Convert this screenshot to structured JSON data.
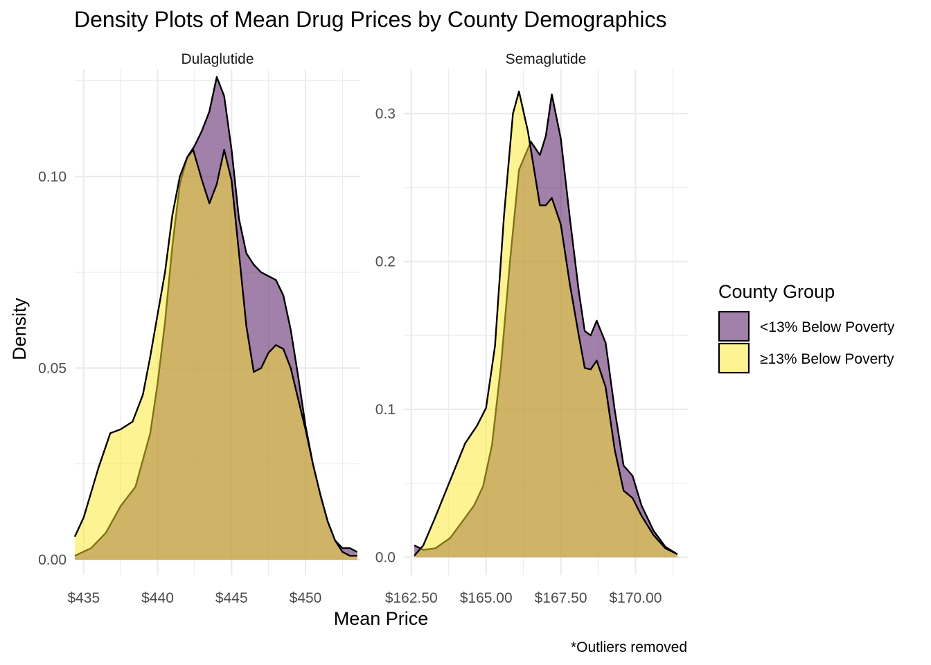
{
  "title": "Density Plots of Mean Drug Prices by County Demographics",
  "xlabel": "Mean Price",
  "ylabel": "Density",
  "caption": "*Outliers removed",
  "legend": {
    "title": "County Group",
    "position": "right",
    "items": [
      {
        "label": "<13% Below Poverty",
        "color": "#440154"
      },
      {
        "label": "≥13% Below Poverty",
        "color": "#FDE725"
      }
    ]
  },
  "chart_data": {
    "type": "area",
    "subtype": "density",
    "fill_alpha": 0.5,
    "grid": true,
    "panels": [
      {
        "name": "Dulaglutide",
        "xlim": [
          434.4,
          453.7
        ],
        "ylim": [
          -0.004,
          0.128
        ],
        "x_ticks": [
          435,
          440,
          445,
          450
        ],
        "x_tick_labels": [
          "$435",
          "$440",
          "$445",
          "$450"
        ],
        "y_ticks": [
          0.0,
          0.05,
          0.1
        ],
        "y_tick_labels": [
          "0.00",
          "0.05",
          "0.10"
        ],
        "series": [
          {
            "name": "<13% Below Poverty",
            "x": [
              434.4,
              435.5,
              436.5,
              437.5,
              438.5,
              439.5,
              440.0,
              440.5,
              441.0,
              441.5,
              442.0,
              442.5,
              443.0,
              443.5,
              444.0,
              444.5,
              445.0,
              445.5,
              446.0,
              446.5,
              447.0,
              447.5,
              448.0,
              448.5,
              449.0,
              449.5,
              450.0,
              450.5,
              451.0,
              451.5,
              452.0,
              452.5,
              453.0,
              453.5
            ],
            "y": [
              0.001,
              0.003,
              0.007,
              0.014,
              0.019,
              0.033,
              0.046,
              0.062,
              0.082,
              0.098,
              0.105,
              0.108,
              0.112,
              0.117,
              0.126,
              0.121,
              0.107,
              0.089,
              0.08,
              0.077,
              0.075,
              0.074,
              0.073,
              0.069,
              0.06,
              0.048,
              0.035,
              0.025,
              0.017,
              0.01,
              0.005,
              0.003,
              0.003,
              0.002
            ]
          },
          {
            "name": "≥13% Below Poverty",
            "x": [
              434.4,
              435.0,
              436.0,
              436.8,
              437.5,
              438.3,
              439.0,
              439.5,
              440.0,
              440.5,
              441.0,
              441.5,
              442.0,
              442.4,
              443.0,
              443.5,
              444.0,
              444.5,
              445.0,
              445.5,
              446.0,
              446.5,
              447.0,
              447.5,
              448.0,
              448.5,
              449.0,
              449.5,
              450.0,
              450.5,
              451.0,
              451.5,
              452.0,
              452.5,
              453.0,
              453.5
            ],
            "y": [
              0.006,
              0.011,
              0.024,
              0.033,
              0.034,
              0.036,
              0.043,
              0.053,
              0.064,
              0.075,
              0.09,
              0.1,
              0.105,
              0.107,
              0.099,
              0.093,
              0.098,
              0.107,
              0.099,
              0.08,
              0.061,
              0.049,
              0.05,
              0.054,
              0.056,
              0.055,
              0.05,
              0.042,
              0.034,
              0.025,
              0.017,
              0.01,
              0.005,
              0.002,
              0.001,
              0.001
            ]
          }
        ]
      },
      {
        "name": "Semaglutide",
        "xlim": [
          162.25,
          171.75
        ],
        "ylim": [
          -0.012,
          0.33
        ],
        "x_ticks": [
          162.5,
          165.0,
          167.5,
          170.0
        ],
        "x_tick_labels": [
          "$162.50",
          "$165.00",
          "$167.50",
          "$170.00"
        ],
        "y_ticks": [
          0.0,
          0.1,
          0.2,
          0.3
        ],
        "y_tick_labels": [
          "0.0",
          "0.1",
          "0.2",
          "0.3"
        ],
        "series": [
          {
            "name": "<13% Below Poverty",
            "x": [
              162.6,
              162.9,
              163.3,
              163.8,
              164.2,
              164.6,
              164.9,
              165.2,
              165.5,
              165.8,
              166.1,
              166.5,
              166.8,
              167.0,
              167.2,
              167.5,
              167.8,
              168.1,
              168.3,
              168.5,
              168.7,
              169.0,
              169.3,
              169.6,
              169.9,
              170.2,
              170.6,
              171.0,
              171.4
            ],
            "y": [
              0.008,
              0.005,
              0.006,
              0.013,
              0.024,
              0.035,
              0.048,
              0.076,
              0.13,
              0.2,
              0.262,
              0.281,
              0.272,
              0.285,
              0.313,
              0.283,
              0.23,
              0.18,
              0.153,
              0.15,
              0.16,
              0.145,
              0.1,
              0.062,
              0.055,
              0.035,
              0.018,
              0.007,
              0.002
            ]
          },
          {
            "name": "≥13% Below Poverty",
            "x": [
              162.6,
              162.9,
              163.3,
              163.8,
              164.3,
              164.7,
              165.0,
              165.3,
              165.6,
              165.9,
              166.1,
              166.4,
              166.8,
              167.0,
              167.2,
              167.5,
              167.8,
              168.1,
              168.3,
              168.5,
              168.7,
              169.0,
              169.3,
              169.6,
              169.9,
              170.2,
              170.6,
              171.0,
              171.4
            ],
            "y": [
              0.001,
              0.008,
              0.027,
              0.052,
              0.077,
              0.089,
              0.101,
              0.143,
              0.231,
              0.3,
              0.315,
              0.288,
              0.238,
              0.238,
              0.243,
              0.225,
              0.185,
              0.15,
              0.128,
              0.127,
              0.133,
              0.115,
              0.073,
              0.045,
              0.04,
              0.028,
              0.015,
              0.006,
              0.002
            ]
          }
        ]
      }
    ]
  }
}
